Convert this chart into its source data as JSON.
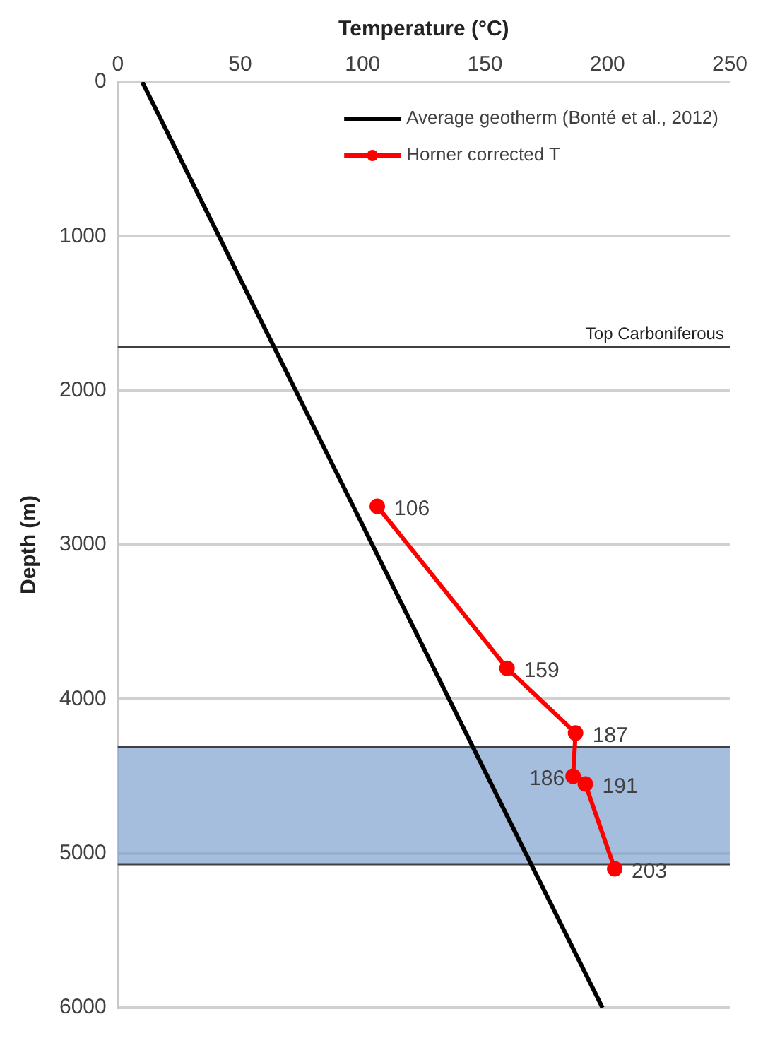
{
  "chart_data": {
    "type": "line",
    "xlabel": "Temperature (°C)",
    "ylabel": "Depth (m)",
    "xlim": [
      0,
      250
    ],
    "xticks": [
      0,
      50,
      100,
      150,
      200,
      250
    ],
    "ylim": [
      6000,
      0
    ],
    "yticks": [
      0,
      1000,
      2000,
      3000,
      4000,
      5000,
      6000
    ],
    "grid": "y",
    "legend": "top right",
    "series": [
      {
        "name": "Average geotherm (Bonté et al., 2012)",
        "color": "#000000",
        "marker": "none",
        "x": [
          10,
          198
        ],
        "values": [
          0,
          6000
        ]
      },
      {
        "name": "Horner corrected T",
        "color": "#ff0000",
        "marker": "circle",
        "x": [
          106,
          159,
          187,
          186,
          191,
          203
        ],
        "values": [
          2750,
          3800,
          4220,
          4500,
          4550,
          5100
        ]
      }
    ],
    "annotations": [
      {
        "text": "106",
        "x": 106,
        "y": 2750
      },
      {
        "text": "159",
        "x": 159,
        "y": 3800
      },
      {
        "text": "187",
        "x": 187,
        "y": 4220
      },
      {
        "text": "186",
        "x": 186,
        "y": 4500
      },
      {
        "text": "191",
        "x": 191,
        "y": 4550
      },
      {
        "text": "203",
        "x": 203,
        "y": 5100
      }
    ],
    "ref_lines": [
      {
        "axis": "y",
        "value": 1720,
        "label": "Top Carboniferous",
        "color": "#404040"
      },
      {
        "axis": "y",
        "value": 4310,
        "color": "#404040"
      },
      {
        "axis": "y",
        "value": 5070,
        "color": "#404040"
      }
    ],
    "bands": [
      {
        "axis": "y",
        "from": 4310,
        "to": 5070,
        "color": "#7fa2cf"
      }
    ]
  }
}
